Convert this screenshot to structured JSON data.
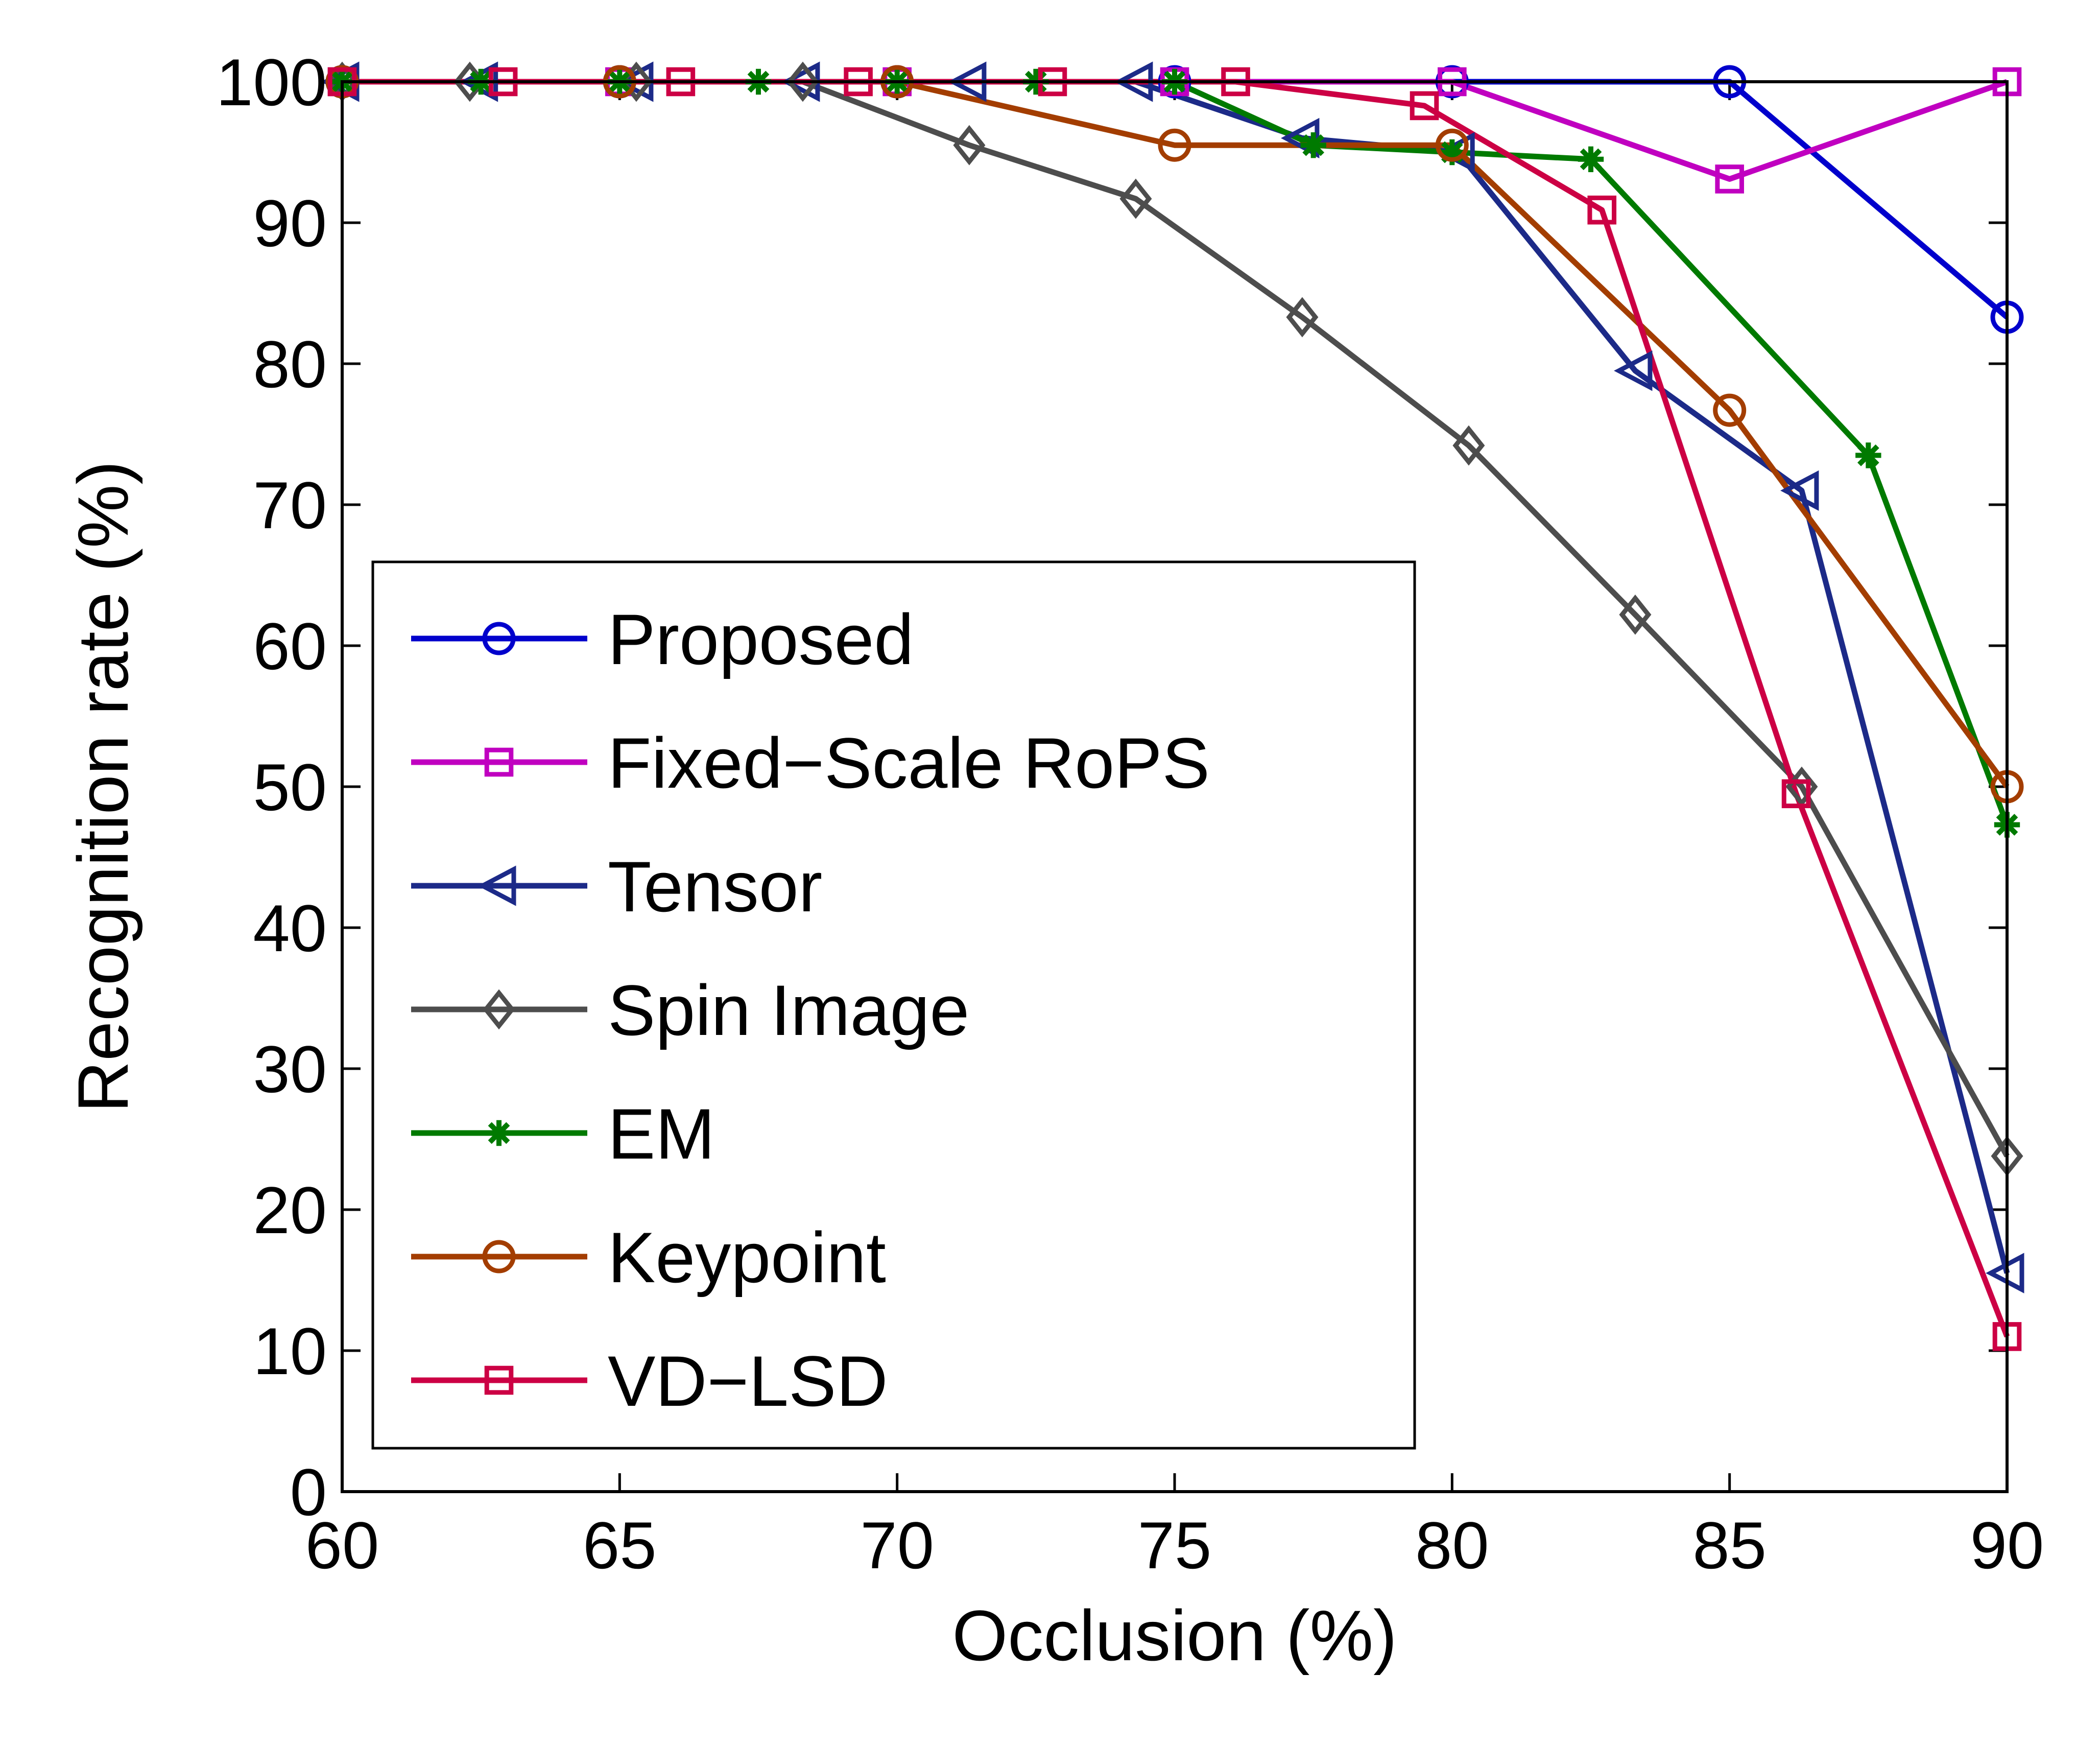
{
  "chart_data": {
    "type": "line",
    "title": "",
    "xlabel": "Occlusion (%)",
    "ylabel": "Recognition rate (%)",
    "xlim": [
      60,
      90
    ],
    "ylim": [
      0,
      100
    ],
    "xticks": [
      60,
      65,
      70,
      75,
      80,
      85,
      90
    ],
    "yticks": [
      0,
      10,
      20,
      30,
      40,
      50,
      60,
      70,
      80,
      90,
      100
    ],
    "grid": false,
    "legend_position": "lower-left",
    "series": [
      {
        "name": "Proposed",
        "color": "#0000cc",
        "marker": "circle",
        "x": [
          60,
          65,
          70,
          75,
          80,
          85,
          90
        ],
        "y": [
          100,
          100,
          100,
          100,
          100,
          100,
          83.3
        ]
      },
      {
        "name": "Fixed−Scale RoPS",
        "color": "#c000c0",
        "marker": "square",
        "x": [
          60,
          65,
          70,
          75,
          80,
          85,
          90
        ],
        "y": [
          100,
          100,
          100,
          100,
          100,
          93.1,
          100
        ]
      },
      {
        "name": "Tensor",
        "color": "#1c2a88",
        "marker": "triangle-left",
        "x": [
          60,
          62.5,
          65.3,
          68.3,
          71.3,
          74.3,
          77.3,
          80.1,
          83.3,
          86.3,
          90
        ],
        "y": [
          100,
          100,
          100,
          100,
          100,
          100,
          96,
          95,
          79.5,
          71,
          15.5
        ]
      },
      {
        "name": "Spin Image",
        "color": "#4d4d4d",
        "marker": "diamond",
        "x": [
          60,
          62.3,
          65.3,
          68.3,
          71.3,
          74.3,
          77.3,
          80.3,
          83.3,
          86.3,
          90
        ],
        "y": [
          100,
          100,
          100,
          100,
          95.5,
          91.7,
          83.3,
          74.2,
          62.2,
          50,
          23.8
        ]
      },
      {
        "name": "EM",
        "color": "#007a00",
        "marker": "star",
        "x": [
          60,
          62.5,
          65,
          67.5,
          70,
          72.5,
          75,
          77.5,
          80,
          82.5,
          87.5,
          90
        ],
        "y": [
          100,
          100,
          100,
          100,
          100,
          100,
          100,
          95.5,
          95,
          94.5,
          73.5,
          47.3
        ]
      },
      {
        "name": "Keypoint",
        "color": "#a33d00",
        "marker": "circle",
        "x": [
          60,
          65,
          70,
          75,
          80,
          85,
          90
        ],
        "y": [
          100,
          100,
          100,
          95.5,
          95.5,
          76.7,
          50
        ]
      },
      {
        "name": "VD−LSD",
        "color": "#cc0044",
        "marker": "square",
        "x": [
          60,
          62.9,
          66.1,
          69.3,
          72.8,
          76.1,
          79.5,
          82.7,
          86.2,
          90
        ],
        "y": [
          100,
          100,
          100,
          100,
          100,
          100,
          98.3,
          90.9,
          49.5,
          11
        ]
      }
    ]
  }
}
